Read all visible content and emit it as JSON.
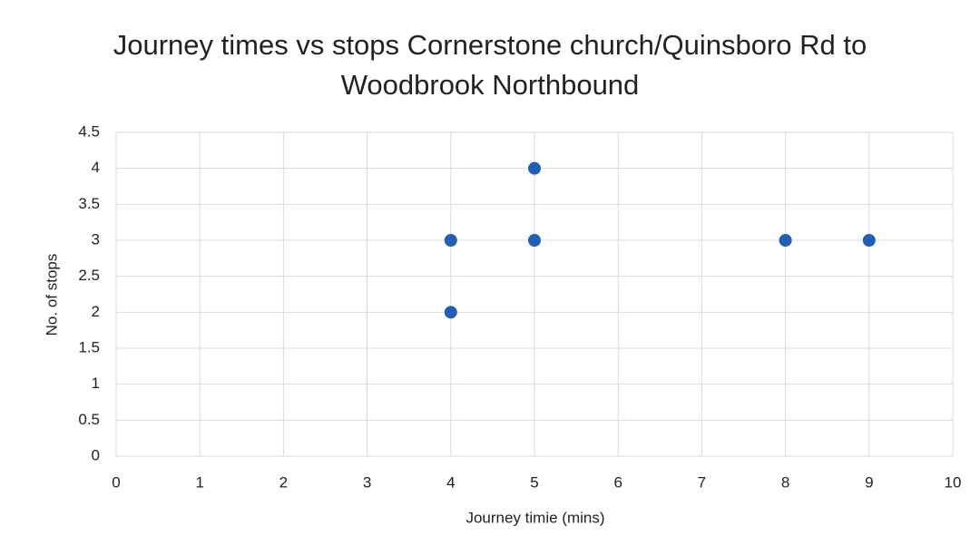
{
  "chart_data": {
    "type": "scatter",
    "title": "Journey times vs stops Cornerstone church/Quinsboro Rd to Woodbrook Northbound",
    "x_label": "Journey timie (mins)",
    "y_label": "No. of stops",
    "x": [
      4,
      4,
      5,
      5,
      8,
      9
    ],
    "values": [
      3,
      2,
      4,
      3,
      3,
      3
    ],
    "color": "#1f5fb4",
    "xlim": [
      0,
      10
    ],
    "xticks": [
      0,
      1,
      2,
      3,
      4,
      5,
      6,
      7,
      8,
      9,
      10
    ],
    "ylim": [
      0,
      4.5
    ],
    "yticks": [
      0,
      0.5,
      1,
      1.5,
      2,
      2.5,
      3,
      3.5,
      4,
      4.5
    ],
    "grid": true
  }
}
